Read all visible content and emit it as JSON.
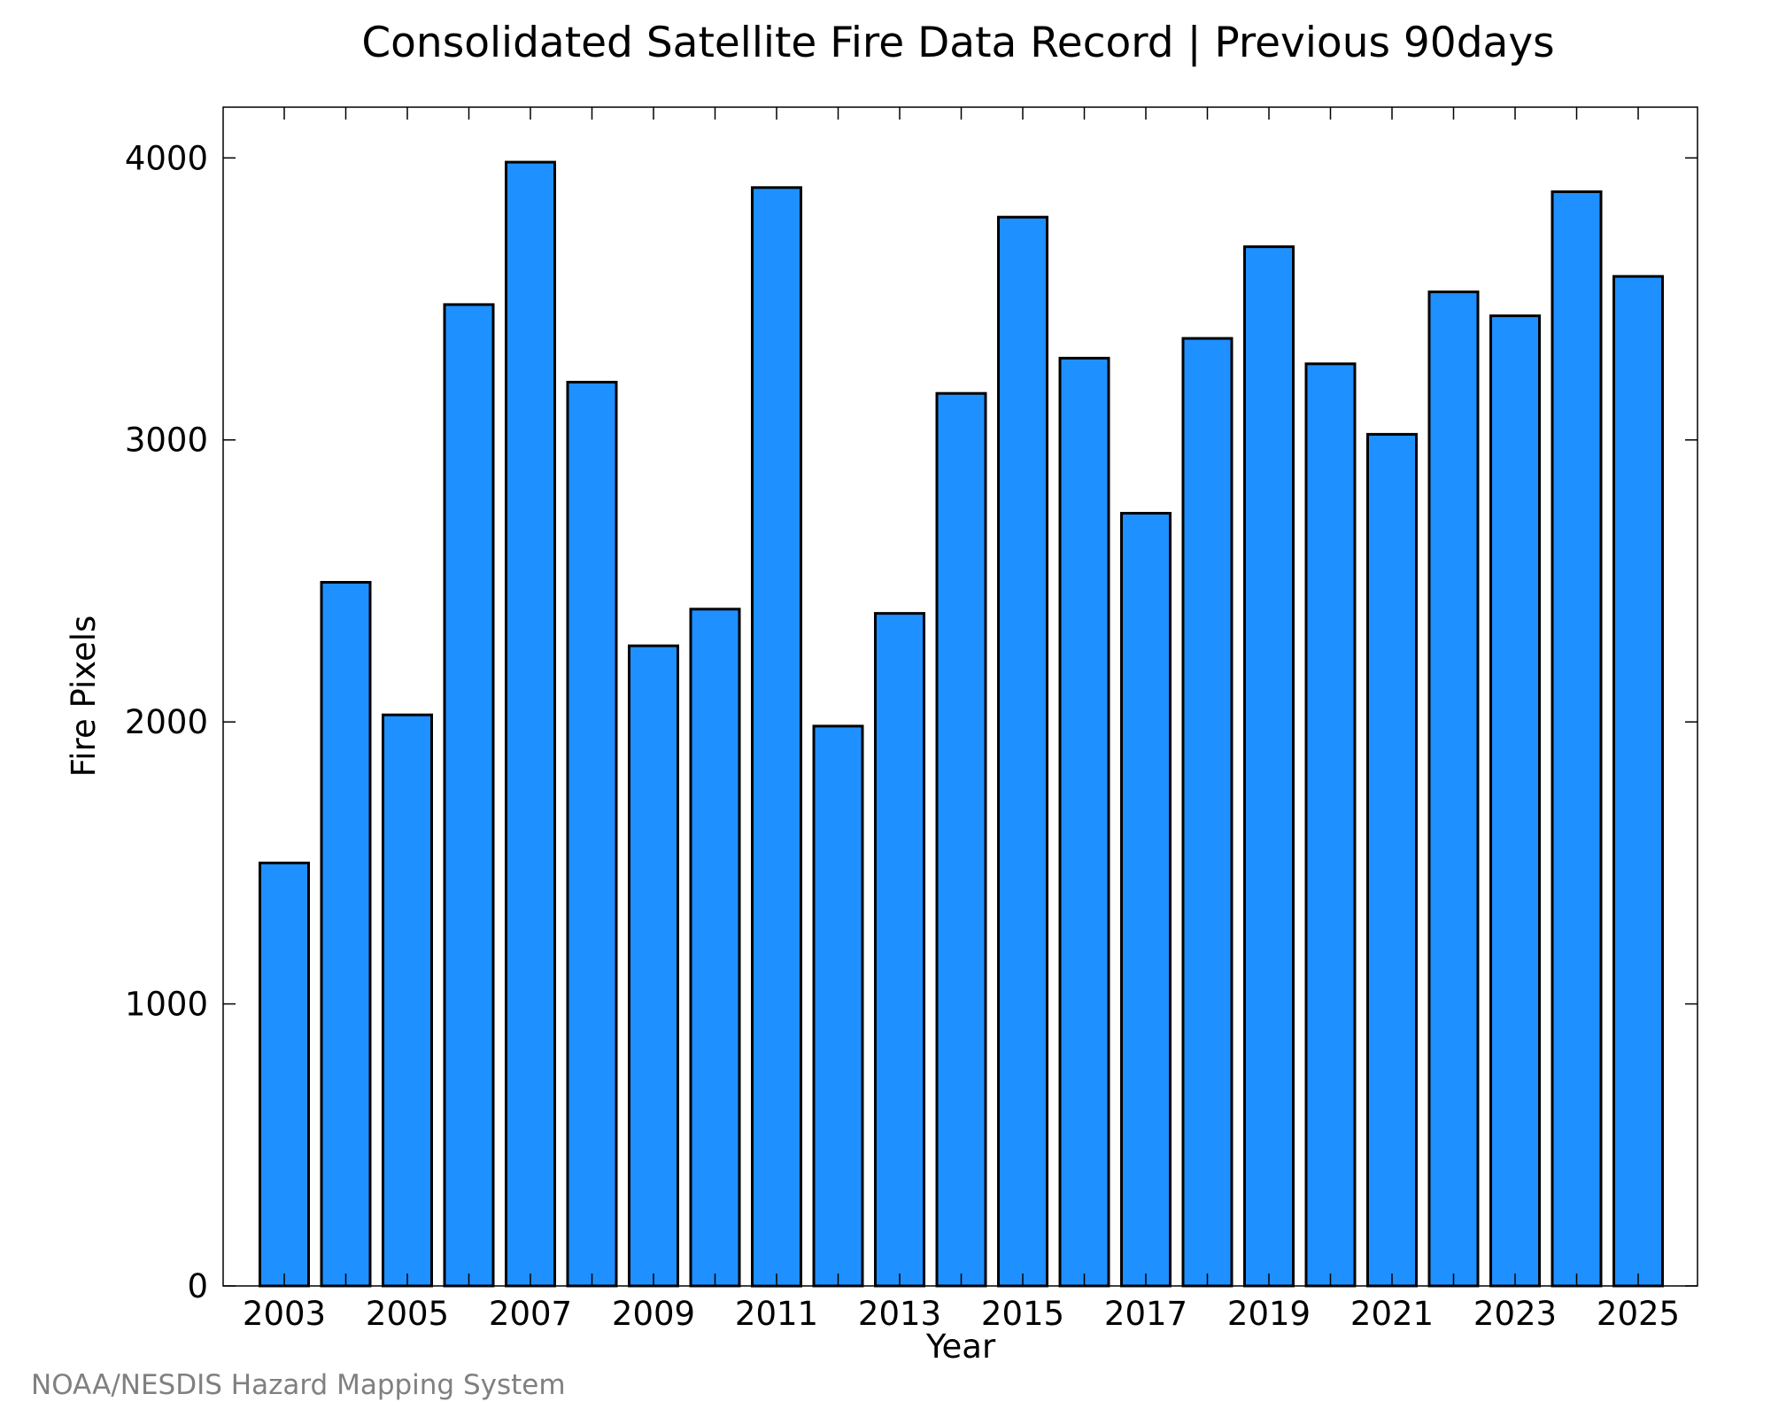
{
  "chart_data": {
    "type": "bar",
    "title": "Consolidated Satellite Fire Data Record | Previous 90days",
    "xlabel": "Year",
    "ylabel": "Fire Pixels",
    "categories": [
      "2003",
      "2004",
      "2005",
      "2006",
      "2007",
      "2008",
      "2009",
      "2010",
      "2011",
      "2012",
      "2013",
      "2014",
      "2015",
      "2016",
      "2017",
      "2018",
      "2019",
      "2020",
      "2021",
      "2022",
      "2023",
      "2024",
      "2025"
    ],
    "values": [
      1500,
      2495,
      2025,
      3480,
      3985,
      3205,
      2270,
      2400,
      3895,
      1985,
      2385,
      3165,
      3790,
      3290,
      2740,
      3360,
      3685,
      3270,
      3020,
      3525,
      3440,
      3880,
      3580
    ],
    "x_tick_labels": [
      "2003",
      "2005",
      "2007",
      "2009",
      "2011",
      "2013",
      "2015",
      "2017",
      "2019",
      "2021",
      "2023",
      "2025"
    ],
    "y_tick_labels": [
      "0",
      "1000",
      "2000",
      "3000",
      "4000"
    ],
    "ylim": [
      0,
      4180
    ],
    "bar_color": "#1e90ff",
    "grid": false,
    "legend": "none"
  },
  "credit": "NOAA/NESDIS Hazard Mapping System"
}
